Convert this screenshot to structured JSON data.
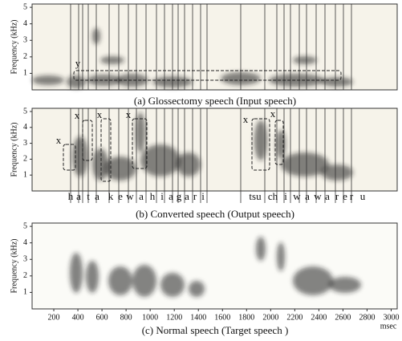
{
  "figure": {
    "panels": [
      {
        "ylabel": "Frequency (kHz)",
        "ylim": [
          0,
          5.2
        ],
        "yticks": [
          1,
          2,
          3,
          4,
          5
        ],
        "caption": "(a) Glossectomy speech    (Input speech)",
        "annotations": [
          "y"
        ]
      },
      {
        "ylabel": "Frequency (kHz)",
        "ylim": [
          0,
          5.2
        ],
        "yticks": [
          1,
          2,
          3,
          4,
          5
        ],
        "caption": "(b) Converted speech (Output speech)",
        "annotations": [
          "x",
          "x",
          "x",
          "x",
          "x",
          "x"
        ],
        "phonemes": [
          "h",
          "a",
          "t",
          "a",
          "k",
          "e",
          "w",
          "a",
          "h",
          "i",
          "a",
          "g",
          "a",
          "r",
          "i",
          "tsu",
          "ch",
          "i",
          "w",
          "a",
          "w",
          "a",
          "r",
          "e",
          "r",
          "u"
        ]
      },
      {
        "ylabel": "Frequency (kHz)",
        "ylim": [
          0,
          5.2
        ],
        "yticks": [
          1,
          2,
          3,
          4,
          5
        ],
        "caption": "(c) Normal speech (Target speech )",
        "xlim": [
          20,
          3050
        ],
        "xticks": [
          200,
          400,
          600,
          800,
          1000,
          1200,
          1400,
          1600,
          1800,
          2000,
          2200,
          2400,
          2600,
          2800,
          3000
        ],
        "xlabel": "msec"
      }
    ]
  }
}
